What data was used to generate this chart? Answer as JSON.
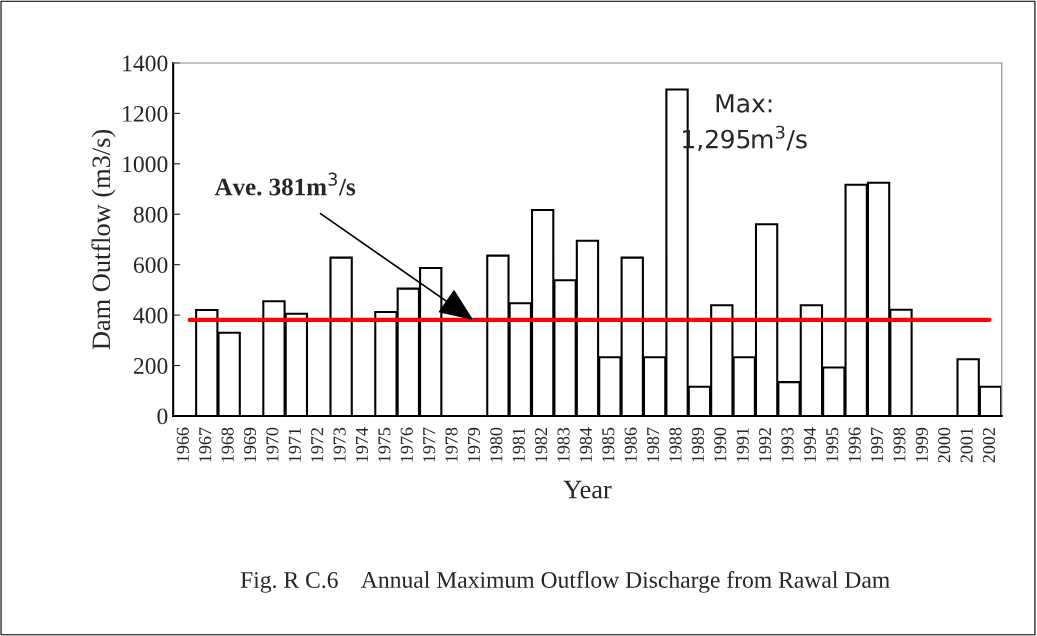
{
  "chart_data": {
    "type": "bar",
    "xlabel": "Year",
    "ylabel": "Dam Outflow (m3/s)",
    "categories": [
      "1966",
      "1967",
      "1968",
      "1969",
      "1970",
      "1971",
      "1972",
      "1973",
      "1974",
      "1975",
      "1976",
      "1977",
      "1978",
      "1979",
      "1980",
      "1981",
      "1982",
      "1983",
      "1984",
      "1985",
      "1986",
      "1987",
      "1988",
      "1989",
      "1990",
      "1991",
      "1992",
      "1993",
      "1994",
      "1995",
      "1996",
      "1997",
      "1998",
      "1999",
      "2000",
      "2001",
      "2002"
    ],
    "values": [
      null,
      420,
      330,
      null,
      455,
      405,
      null,
      628,
      null,
      412,
      505,
      587,
      null,
      null,
      636,
      447,
      817,
      538,
      695,
      233,
      628,
      233,
      1295,
      116,
      439,
      233,
      760,
      134,
      439,
      192,
      917,
      925,
      421,
      null,
      null,
      225,
      116
    ],
    "color": "#ffffff",
    "ylim": [
      0,
      1400
    ],
    "yticks": [
      0,
      200,
      400,
      600,
      800,
      1000,
      1200,
      1400
    ],
    "grid": false,
    "legend": false,
    "ref_lines": [
      {
        "axis": "y",
        "value": 381,
        "label": "Ave. 381m$^{3}$/s",
        "color": "#ff0000"
      }
    ],
    "annotations": [
      "Max:\n1,295m$^{3}$/s",
      "Fig. R C.6    Annual Maximum Outflow Discharge from Rawal Dam"
    ]
  }
}
